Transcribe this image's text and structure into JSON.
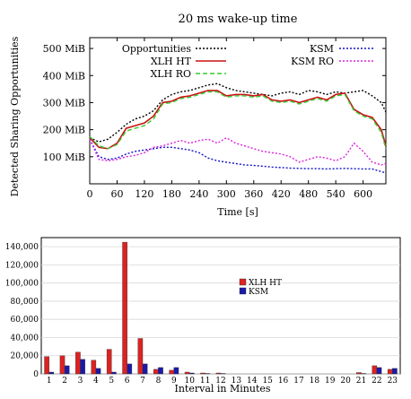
{
  "chart_data": [
    {
      "type": "line",
      "title": "20 ms wake-up time",
      "xlabel": "Time [s]",
      "ylabel": "Detected Sharing Opportunities",
      "xlim": [
        0,
        650
      ],
      "ylim": [
        0,
        540
      ],
      "xticks": [
        0,
        60,
        120,
        180,
        240,
        300,
        360,
        420,
        480,
        540,
        600
      ],
      "yticks": [
        100,
        200,
        300,
        400,
        500
      ],
      "ytick_labels": [
        "100 MiB",
        "200 MiB",
        "300 MiB",
        "400 MiB",
        "500 MiB"
      ],
      "legend": "inside-top",
      "series": [
        {
          "name": "Opportunities",
          "color": "#000000",
          "dash": "dotted",
          "x": [
            0,
            20,
            40,
            60,
            80,
            100,
            120,
            140,
            160,
            180,
            200,
            220,
            240,
            260,
            280,
            300,
            320,
            340,
            360,
            380,
            400,
            420,
            440,
            460,
            480,
            500,
            520,
            540,
            560,
            580,
            600,
            620,
            640,
            650
          ],
          "y": [
            170,
            155,
            165,
            190,
            220,
            240,
            250,
            270,
            310,
            330,
            340,
            345,
            355,
            365,
            370,
            355,
            345,
            340,
            335,
            330,
            325,
            335,
            340,
            330,
            345,
            340,
            330,
            340,
            335,
            340,
            345,
            325,
            300,
            265
          ]
        },
        {
          "name": "XLH HT",
          "color": "#cc1111",
          "dash": "solid",
          "x": [
            0,
            20,
            40,
            60,
            80,
            100,
            120,
            140,
            160,
            180,
            200,
            220,
            240,
            260,
            280,
            300,
            320,
            340,
            360,
            380,
            400,
            420,
            440,
            460,
            480,
            500,
            520,
            540,
            560,
            580,
            600,
            620,
            640,
            650
          ],
          "y": [
            170,
            135,
            130,
            150,
            205,
            215,
            225,
            250,
            300,
            305,
            320,
            325,
            335,
            345,
            345,
            325,
            330,
            330,
            325,
            330,
            310,
            305,
            310,
            300,
            310,
            320,
            310,
            330,
            335,
            275,
            255,
            245,
            200,
            140
          ]
        },
        {
          "name": "XLH RO",
          "color": "#33cc33",
          "dash": "dashed",
          "x": [
            0,
            20,
            40,
            60,
            80,
            100,
            120,
            140,
            160,
            180,
            200,
            220,
            240,
            260,
            280,
            300,
            320,
            340,
            360,
            380,
            400,
            420,
            440,
            460,
            480,
            500,
            520,
            540,
            560,
            580,
            600,
            620,
            640,
            650
          ],
          "y": [
            175,
            140,
            130,
            145,
            195,
            205,
            215,
            240,
            295,
            300,
            315,
            320,
            330,
            340,
            340,
            320,
            325,
            325,
            320,
            325,
            305,
            300,
            305,
            295,
            305,
            315,
            305,
            325,
            330,
            270,
            250,
            240,
            190,
            130
          ]
        },
        {
          "name": "KSM",
          "color": "#1111cc",
          "dash": "dotted",
          "x": [
            0,
            20,
            40,
            60,
            80,
            100,
            120,
            140,
            160,
            180,
            200,
            220,
            240,
            260,
            280,
            300,
            320,
            340,
            360,
            380,
            400,
            420,
            440,
            460,
            480,
            500,
            520,
            540,
            560,
            580,
            600,
            620,
            640,
            650
          ],
          "y": [
            165,
            100,
            90,
            95,
            110,
            120,
            125,
            130,
            135,
            135,
            130,
            125,
            115,
            95,
            85,
            80,
            75,
            70,
            68,
            65,
            62,
            60,
            58,
            57,
            56,
            56,
            55,
            56,
            57,
            56,
            55,
            55,
            45,
            40
          ]
        },
        {
          "name": "KSM RO",
          "color": "#dd22dd",
          "dash": "dotted",
          "x": [
            0,
            20,
            40,
            60,
            80,
            100,
            120,
            140,
            160,
            180,
            200,
            220,
            240,
            260,
            280,
            300,
            320,
            340,
            360,
            380,
            400,
            420,
            440,
            460,
            480,
            500,
            520,
            540,
            560,
            580,
            600,
            620,
            640,
            650
          ],
          "y": [
            165,
            90,
            85,
            90,
            100,
            105,
            115,
            135,
            140,
            150,
            160,
            150,
            160,
            165,
            150,
            170,
            150,
            140,
            130,
            120,
            115,
            110,
            100,
            80,
            90,
            100,
            95,
            85,
            100,
            150,
            120,
            80,
            70,
            75
          ]
        }
      ]
    },
    {
      "type": "bar",
      "xlabel": "Interval in Minutes",
      "ylabel": "",
      "ylim": [
        0,
        145000
      ],
      "yticks": [
        0,
        20000,
        40000,
        60000,
        80000,
        100000,
        120000,
        140000
      ],
      "ytick_labels": [
        "0",
        "20,000",
        "40,000",
        "60,000",
        "80,000",
        "100,000",
        "120,000",
        "140,000"
      ],
      "legend": "center-right",
      "categories": [
        "1",
        "2",
        "3",
        "4",
        "5",
        "6",
        "7",
        "8",
        "9",
        "10",
        "11",
        "12",
        "13",
        "14",
        "15",
        "16",
        "17",
        "18",
        "19",
        "20",
        "21",
        "22",
        "23"
      ],
      "series": [
        {
          "name": "XLH HT",
          "color": "#dd2222",
          "values": [
            19000,
            20000,
            24000,
            15000,
            27000,
            145000,
            39000,
            5000,
            4000,
            2000,
            1000,
            1000,
            0,
            0,
            0,
            0,
            0,
            0,
            0,
            0,
            1500,
            9000,
            5000
          ]
        },
        {
          "name": "KSM",
          "color": "#1a1aaa",
          "values": [
            2000,
            9000,
            16000,
            6000,
            2000,
            11000,
            11000,
            7000,
            7000,
            1000,
            500,
            500,
            0,
            0,
            0,
            0,
            0,
            0,
            0,
            0,
            500,
            7000,
            6000
          ]
        }
      ]
    }
  ]
}
